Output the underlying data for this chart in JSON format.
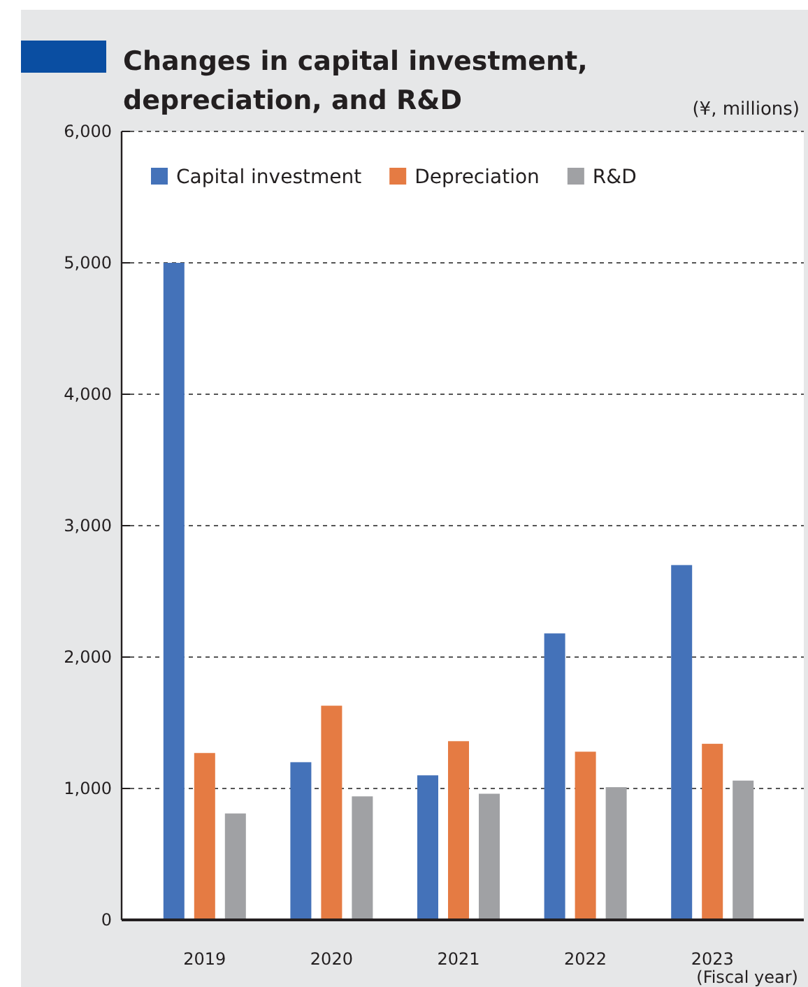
{
  "chart_data": {
    "type": "bar",
    "title": "Changes in capital investment, depreciation, and R&D",
    "ylabel": "(¥, millions)",
    "xlabel": "(Fiscal year)",
    "categories": [
      "2019",
      "2020",
      "2021",
      "2022",
      "2023"
    ],
    "series": [
      {
        "name": "Capital investment",
        "color": "#4472b9",
        "values": [
          5000,
          1200,
          1100,
          2180,
          2700
        ]
      },
      {
        "name": "Depreciation",
        "color": "#e57b43",
        "values": [
          1270,
          1630,
          1360,
          1280,
          1340
        ]
      },
      {
        "name": "R&D",
        "color": "#a0a1a4",
        "values": [
          810,
          940,
          960,
          1010,
          1060
        ]
      }
    ],
    "ylim": [
      0,
      6000
    ],
    "yticks": [
      {
        "value": 0,
        "label": "0"
      },
      {
        "value": 1000,
        "label": "1,000"
      },
      {
        "value": 2000,
        "label": "2,000"
      },
      {
        "value": 3000,
        "label": "3,000"
      },
      {
        "value": 4000,
        "label": "4,000"
      },
      {
        "value": 5000,
        "label": "5,000"
      },
      {
        "value": 6000,
        "label": "6,000"
      }
    ],
    "grid": "y",
    "legend": "top left"
  }
}
